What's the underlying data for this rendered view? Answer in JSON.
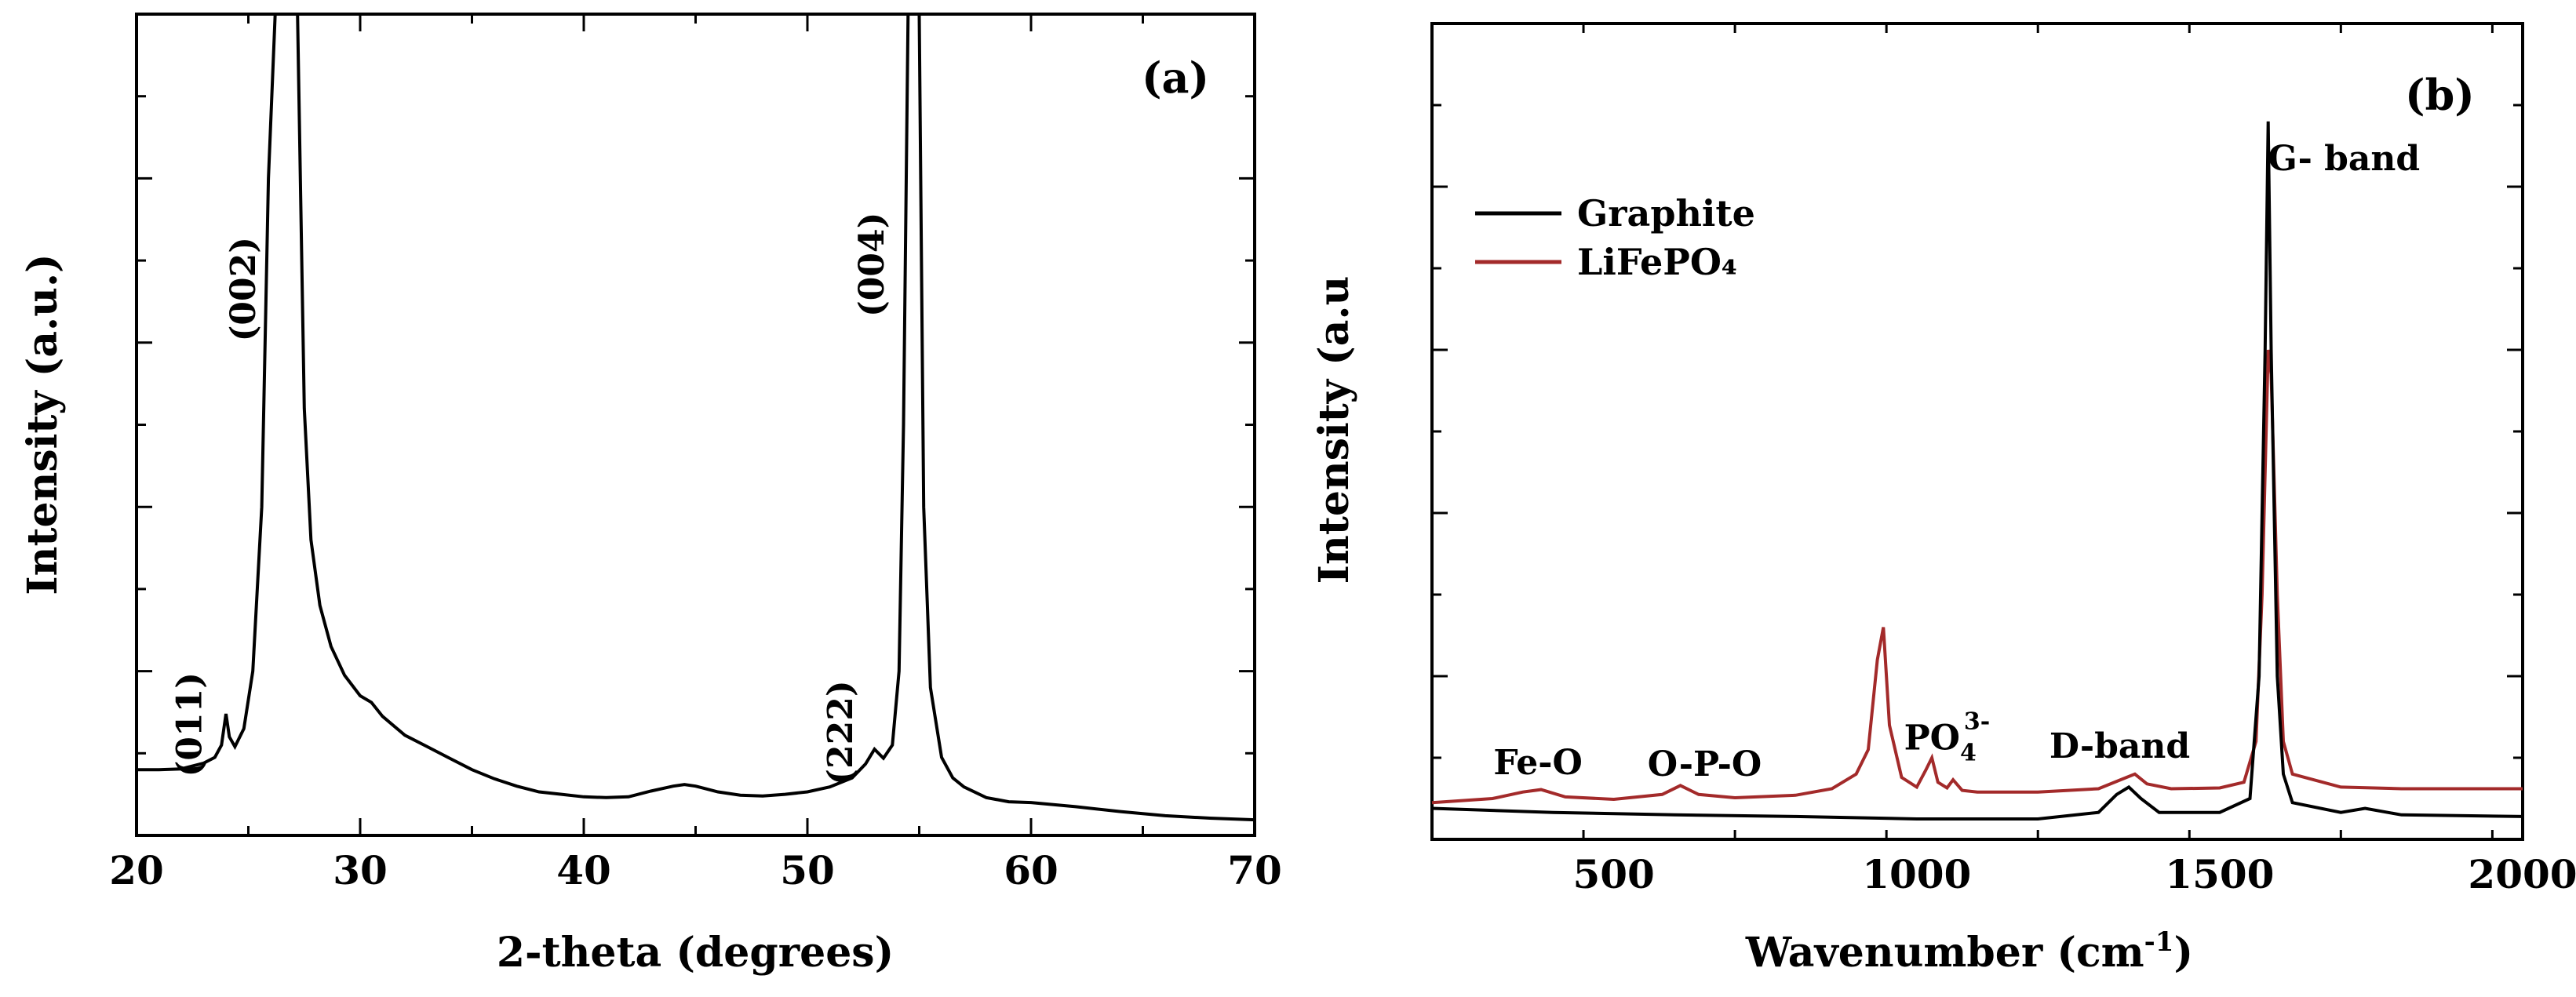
{
  "chart_data": [
    {
      "type": "line",
      "panel_label": "(a)",
      "xlabel": "2-theta (degrees)",
      "ylabel": "Intensity (a.u.)",
      "xlim": [
        20,
        70
      ],
      "ylim": [
        0,
        100
      ],
      "x_ticks": [
        20,
        30,
        40,
        50,
        60,
        70
      ],
      "y_tick_labels": false,
      "grid": false,
      "series": [
        {
          "color": "#000000",
          "points": [
            [
              20.0,
              8.0
            ],
            [
              21.0,
              8.0
            ],
            [
              22.0,
              8.1
            ],
            [
              23.0,
              8.8
            ],
            [
              23.5,
              9.5
            ],
            [
              23.8,
              11.0
            ],
            [
              24.0,
              14.8
            ],
            [
              24.15,
              12.0
            ],
            [
              24.4,
              10.8
            ],
            [
              24.8,
              13.0
            ],
            [
              25.2,
              20.0
            ],
            [
              25.6,
              40.0
            ],
            [
              25.9,
              80.0
            ],
            [
              26.2,
              140.0
            ],
            [
              27.2,
              140.0
            ],
            [
              27.5,
              52.0
            ],
            [
              27.8,
              36.0
            ],
            [
              28.2,
              28.0
            ],
            [
              28.7,
              23.0
            ],
            [
              29.3,
              19.5
            ],
            [
              30.0,
              17.0
            ],
            [
              30.5,
              16.2
            ],
            [
              31.0,
              14.5
            ],
            [
              32.0,
              12.2
            ],
            [
              33.0,
              10.8
            ],
            [
              34.0,
              9.4
            ],
            [
              35.0,
              8.0
            ],
            [
              36.0,
              6.9
            ],
            [
              37.0,
              6.0
            ],
            [
              38.0,
              5.3
            ],
            [
              39.0,
              5.0
            ],
            [
              40.0,
              4.7
            ],
            [
              41.0,
              4.6
            ],
            [
              42.0,
              4.7
            ],
            [
              43.0,
              5.4
            ],
            [
              44.0,
              6.0
            ],
            [
              44.5,
              6.2
            ],
            [
              45.0,
              6.0
            ],
            [
              46.0,
              5.3
            ],
            [
              47.0,
              4.9
            ],
            [
              48.0,
              4.8
            ],
            [
              49.0,
              5.0
            ],
            [
              50.0,
              5.3
            ],
            [
              51.0,
              5.9
            ],
            [
              52.0,
              7.0
            ],
            [
              52.6,
              8.7
            ],
            [
              53.0,
              10.5
            ],
            [
              53.4,
              9.4
            ],
            [
              53.8,
              11.0
            ],
            [
              54.1,
              20.0
            ],
            [
              54.3,
              50.0
            ],
            [
              54.5,
              120.0
            ],
            [
              55.0,
              120.0
            ],
            [
              55.2,
              40.0
            ],
            [
              55.5,
              18.0
            ],
            [
              56.0,
              9.5
            ],
            [
              56.5,
              7.0
            ],
            [
              57.0,
              5.9
            ],
            [
              58.0,
              4.6
            ],
            [
              59.0,
              4.1
            ],
            [
              60.0,
              4.0
            ],
            [
              62.0,
              3.5
            ],
            [
              64.0,
              2.9
            ],
            [
              66.0,
              2.4
            ],
            [
              68.0,
              2.1
            ],
            [
              70.0,
              1.9
            ]
          ]
        }
      ],
      "annotations": [
        {
          "text": "(011)",
          "x": 22.9,
          "y": 13.5
        },
        {
          "text": "(002)",
          "x": 25.3,
          "y": 66.5
        },
        {
          "text": "(004)",
          "x": 53.4,
          "y": 69.5
        },
        {
          "text": "(222)",
          "x": 52.0,
          "y": 12.5
        }
      ]
    },
    {
      "type": "line",
      "panel_label": "(b)",
      "xlabel_parts": [
        "Wavenumber (cm",
        "-1",
        ")"
      ],
      "ylabel": "Intensity (a.u",
      "xlim": [
        200,
        2000
      ],
      "ylim": [
        0,
        100
      ],
      "x_ticks": [
        500,
        1000,
        1500,
        2000
      ],
      "y_tick_labels": false,
      "grid": false,
      "legend": "upper-left",
      "series": [
        {
          "name": "Graphite",
          "color": "#000000",
          "points": [
            [
              200,
              3.8
            ],
            [
              400,
              3.3
            ],
            [
              600,
              3.0
            ],
            [
              800,
              2.8
            ],
            [
              1000,
              2.5
            ],
            [
              1200,
              2.5
            ],
            [
              1300,
              3.3
            ],
            [
              1330,
              5.5
            ],
            [
              1350,
              6.4
            ],
            [
              1370,
              5.0
            ],
            [
              1400,
              3.3
            ],
            [
              1500,
              3.3
            ],
            [
              1550,
              5.0
            ],
            [
              1565,
              20.0
            ],
            [
              1575,
              60.0
            ],
            [
              1580,
              88.0
            ],
            [
              1585,
              60.0
            ],
            [
              1595,
              20.0
            ],
            [
              1605,
              8.0
            ],
            [
              1620,
              4.5
            ],
            [
              1700,
              3.3
            ],
            [
              1740,
              3.8
            ],
            [
              1800,
              3.0
            ],
            [
              2000,
              2.8
            ]
          ]
        },
        {
          "name": "LiFePO₄",
          "color": "#a32a2a",
          "points": [
            [
              200,
              4.5
            ],
            [
              300,
              5.0
            ],
            [
              350,
              5.8
            ],
            [
              380,
              6.1
            ],
            [
              420,
              5.2
            ],
            [
              500,
              4.9
            ],
            [
              580,
              5.5
            ],
            [
              610,
              6.6
            ],
            [
              640,
              5.5
            ],
            [
              700,
              5.1
            ],
            [
              800,
              5.4
            ],
            [
              860,
              6.2
            ],
            [
              900,
              8.0
            ],
            [
              920,
              11.0
            ],
            [
              935,
              22.0
            ],
            [
              945,
              26.0
            ],
            [
              955,
              14.0
            ],
            [
              975,
              7.6
            ],
            [
              1000,
              6.4
            ],
            [
              1015,
              8.5
            ],
            [
              1025,
              10.0
            ],
            [
              1035,
              7.0
            ],
            [
              1050,
              6.3
            ],
            [
              1060,
              7.3
            ],
            [
              1075,
              6.0
            ],
            [
              1100,
              5.8
            ],
            [
              1200,
              5.8
            ],
            [
              1300,
              6.2
            ],
            [
              1340,
              7.4
            ],
            [
              1360,
              8.0
            ],
            [
              1380,
              6.8
            ],
            [
              1420,
              6.2
            ],
            [
              1500,
              6.3
            ],
            [
              1540,
              7.0
            ],
            [
              1560,
              12.0
            ],
            [
              1570,
              30.0
            ],
            [
              1580,
              60.0
            ],
            [
              1585,
              57.0
            ],
            [
              1595,
              30.0
            ],
            [
              1605,
              12.0
            ],
            [
              1620,
              8.0
            ],
            [
              1700,
              6.4
            ],
            [
              1800,
              6.2
            ],
            [
              2000,
              6.2
            ]
          ]
        }
      ],
      "annotations": [
        {
          "text": "G- band",
          "x": 1705,
          "y": 82.0
        },
        {
          "text": "D-band",
          "x": 1335,
          "y": 10.0
        },
        {
          "text": "Fe-O",
          "x": 375,
          "y": 8.0
        },
        {
          "text": "O-P-O",
          "x": 650,
          "y": 7.8
        },
        {
          "text": "PO",
          "sub": "4",
          "sup": "3-",
          "x": 1050,
          "y": 11.0
        }
      ]
    }
  ]
}
